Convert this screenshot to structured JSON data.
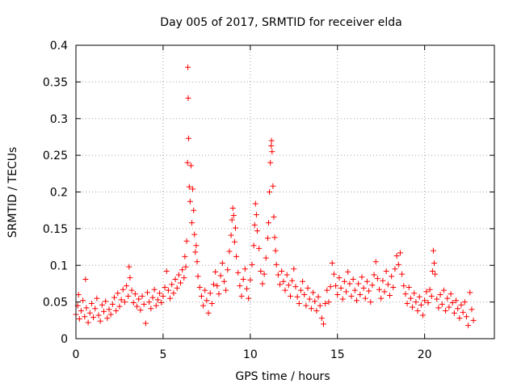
{
  "chart_data": {
    "type": "scatter",
    "title": "Day 005 of 2017, SRMTID for receiver elda",
    "xlabel": "GPS time / hours",
    "ylabel": "SRMTID / TECUs",
    "xlim": [
      0,
      24
    ],
    "ylim": [
      0,
      0.4
    ],
    "xticks": [
      0,
      5,
      10,
      15,
      20
    ],
    "xtick_labels": [
      "0",
      "5",
      "10",
      "15",
      "20"
    ],
    "yticks": [
      0,
      0.05,
      0.1,
      0.15,
      0.2,
      0.25,
      0.3,
      0.35,
      0.4
    ],
    "ytick_labels": [
      "0",
      "0.05",
      "0.1",
      "0.15",
      "0.2",
      "0.25",
      "0.3",
      "0.35",
      "0.4"
    ],
    "grid": true,
    "marker": "+",
    "color": "#ff0000",
    "series": [
      {
        "name": "SRMTID",
        "points": [
          [
            0.0,
            0.033
          ],
          [
            0.1,
            0.045
          ],
          [
            0.15,
            0.06
          ],
          [
            0.2,
            0.027
          ],
          [
            0.3,
            0.038
          ],
          [
            0.4,
            0.052
          ],
          [
            0.5,
            0.03
          ],
          [
            0.55,
            0.081
          ],
          [
            0.6,
            0.042
          ],
          [
            0.7,
            0.022
          ],
          [
            0.8,
            0.035
          ],
          [
            0.9,
            0.048
          ],
          [
            1.0,
            0.029
          ],
          [
            1.1,
            0.041
          ],
          [
            1.2,
            0.055
          ],
          [
            1.3,
            0.032
          ],
          [
            1.4,
            0.024
          ],
          [
            1.5,
            0.046
          ],
          [
            1.6,
            0.037
          ],
          [
            1.7,
            0.051
          ],
          [
            1.8,
            0.028
          ],
          [
            1.9,
            0.04
          ],
          [
            2.0,
            0.033
          ],
          [
            2.1,
            0.047
          ],
          [
            2.2,
            0.056
          ],
          [
            2.3,
            0.038
          ],
          [
            2.4,
            0.062
          ],
          [
            2.5,
            0.044
          ],
          [
            2.6,
            0.053
          ],
          [
            2.7,
            0.067
          ],
          [
            2.8,
            0.05
          ],
          [
            2.9,
            0.072
          ],
          [
            3.0,
            0.058
          ],
          [
            3.05,
            0.098
          ],
          [
            3.1,
            0.083
          ],
          [
            3.2,
            0.066
          ],
          [
            3.3,
            0.049
          ],
          [
            3.4,
            0.061
          ],
          [
            3.5,
            0.044
          ],
          [
            3.6,
            0.054
          ],
          [
            3.7,
            0.039
          ],
          [
            3.8,
            0.058
          ],
          [
            3.9,
            0.047
          ],
          [
            4.0,
            0.021
          ],
          [
            4.1,
            0.063
          ],
          [
            4.2,
            0.05
          ],
          [
            4.3,
            0.041
          ],
          [
            4.4,
            0.056
          ],
          [
            4.5,
            0.067
          ],
          [
            4.6,
            0.045
          ],
          [
            4.7,
            0.053
          ],
          [
            4.8,
            0.062
          ],
          [
            4.9,
            0.049
          ],
          [
            5.0,
            0.058
          ],
          [
            5.1,
            0.07
          ],
          [
            5.2,
            0.092
          ],
          [
            5.3,
            0.066
          ],
          [
            5.4,
            0.055
          ],
          [
            5.5,
            0.074
          ],
          [
            5.6,
            0.062
          ],
          [
            5.7,
            0.081
          ],
          [
            5.8,
            0.069
          ],
          [
            5.9,
            0.087
          ],
          [
            6.0,
            0.076
          ],
          [
            6.1,
            0.094
          ],
          [
            6.2,
            0.083
          ],
          [
            6.25,
            0.112
          ],
          [
            6.3,
            0.098
          ],
          [
            6.35,
            0.133
          ],
          [
            6.4,
            0.24
          ],
          [
            6.42,
            0.37
          ],
          [
            6.44,
            0.328
          ],
          [
            6.46,
            0.273
          ],
          [
            6.5,
            0.207
          ],
          [
            6.55,
            0.187
          ],
          [
            6.6,
            0.236
          ],
          [
            6.65,
            0.158
          ],
          [
            6.7,
            0.204
          ],
          [
            6.75,
            0.175
          ],
          [
            6.8,
            0.142
          ],
          [
            6.85,
            0.118
          ],
          [
            6.9,
            0.127
          ],
          [
            6.95,
            0.105
          ],
          [
            7.0,
            0.085
          ],
          [
            7.1,
            0.07
          ],
          [
            7.2,
            0.058
          ],
          [
            7.3,
            0.045
          ],
          [
            7.4,
            0.066
          ],
          [
            7.5,
            0.052
          ],
          [
            7.6,
            0.035
          ],
          [
            7.7,
            0.062
          ],
          [
            7.8,
            0.048
          ],
          [
            7.9,
            0.074
          ],
          [
            8.0,
            0.091
          ],
          [
            8.1,
            0.072
          ],
          [
            8.2,
            0.061
          ],
          [
            8.3,
            0.086
          ],
          [
            8.4,
            0.103
          ],
          [
            8.5,
            0.078
          ],
          [
            8.6,
            0.066
          ],
          [
            8.7,
            0.094
          ],
          [
            8.8,
            0.119
          ],
          [
            8.9,
            0.141
          ],
          [
            8.95,
            0.162
          ],
          [
            9.0,
            0.178
          ],
          [
            9.05,
            0.168
          ],
          [
            9.1,
            0.132
          ],
          [
            9.15,
            0.151
          ],
          [
            9.2,
            0.112
          ],
          [
            9.3,
            0.09
          ],
          [
            9.4,
            0.072
          ],
          [
            9.5,
            0.058
          ],
          [
            9.6,
            0.081
          ],
          [
            9.7,
            0.095
          ],
          [
            9.8,
            0.068
          ],
          [
            9.9,
            0.055
          ],
          [
            10.0,
            0.08
          ],
          [
            10.1,
            0.101
          ],
          [
            10.2,
            0.127
          ],
          [
            10.25,
            0.155
          ],
          [
            10.3,
            0.184
          ],
          [
            10.35,
            0.169
          ],
          [
            10.4,
            0.147
          ],
          [
            10.5,
            0.123
          ],
          [
            10.6,
            0.092
          ],
          [
            10.7,
            0.075
          ],
          [
            10.8,
            0.088
          ],
          [
            10.9,
            0.11
          ],
          [
            11.0,
            0.137
          ],
          [
            11.05,
            0.158
          ],
          [
            11.1,
            0.2
          ],
          [
            11.15,
            0.24
          ],
          [
            11.2,
            0.263
          ],
          [
            11.22,
            0.27
          ],
          [
            11.25,
            0.255
          ],
          [
            11.3,
            0.208
          ],
          [
            11.35,
            0.166
          ],
          [
            11.4,
            0.138
          ],
          [
            11.45,
            0.12
          ],
          [
            11.5,
            0.101
          ],
          [
            11.6,
            0.087
          ],
          [
            11.7,
            0.074
          ],
          [
            11.8,
            0.092
          ],
          [
            11.9,
            0.078
          ],
          [
            12.0,
            0.066
          ],
          [
            12.1,
            0.087
          ],
          [
            12.2,
            0.073
          ],
          [
            12.3,
            0.058
          ],
          [
            12.4,
            0.079
          ],
          [
            12.5,
            0.095
          ],
          [
            12.6,
            0.071
          ],
          [
            12.7,
            0.057
          ],
          [
            12.8,
            0.048
          ],
          [
            12.9,
            0.066
          ],
          [
            13.0,
            0.078
          ],
          [
            13.1,
            0.06
          ],
          [
            13.2,
            0.045
          ],
          [
            13.3,
            0.069
          ],
          [
            13.4,
            0.054
          ],
          [
            13.5,
            0.041
          ],
          [
            13.6,
            0.063
          ],
          [
            13.7,
            0.051
          ],
          [
            13.8,
            0.038
          ],
          [
            13.9,
            0.057
          ],
          [
            14.0,
            0.045
          ],
          [
            14.1,
            0.028
          ],
          [
            14.2,
            0.02
          ],
          [
            14.3,
            0.048
          ],
          [
            14.4,
            0.066
          ],
          [
            14.5,
            0.05
          ],
          [
            14.6,
            0.071
          ],
          [
            14.7,
            0.103
          ],
          [
            14.8,
            0.088
          ],
          [
            14.9,
            0.072
          ],
          [
            15.0,
            0.06
          ],
          [
            15.1,
            0.083
          ],
          [
            15.2,
            0.069
          ],
          [
            15.3,
            0.054
          ],
          [
            15.4,
            0.078
          ],
          [
            15.5,
            0.064
          ],
          [
            15.6,
            0.091
          ],
          [
            15.7,
            0.075
          ],
          [
            15.8,
            0.058
          ],
          [
            15.9,
            0.081
          ],
          [
            16.0,
            0.066
          ],
          [
            16.1,
            0.052
          ],
          [
            16.2,
            0.075
          ],
          [
            16.3,
            0.06
          ],
          [
            16.4,
            0.084
          ],
          [
            16.5,
            0.069
          ],
          [
            16.6,
            0.055
          ],
          [
            16.7,
            0.078
          ],
          [
            16.8,
            0.065
          ],
          [
            16.9,
            0.05
          ],
          [
            17.0,
            0.073
          ],
          [
            17.1,
            0.087
          ],
          [
            17.2,
            0.105
          ],
          [
            17.3,
            0.082
          ],
          [
            17.4,
            0.067
          ],
          [
            17.5,
            0.055
          ],
          [
            17.6,
            0.079
          ],
          [
            17.7,
            0.064
          ],
          [
            17.8,
            0.092
          ],
          [
            17.9,
            0.074
          ],
          [
            18.0,
            0.059
          ],
          [
            18.1,
            0.085
          ],
          [
            18.2,
            0.07
          ],
          [
            18.3,
            0.095
          ],
          [
            18.4,
            0.113
          ],
          [
            18.5,
            0.101
          ],
          [
            18.6,
            0.117
          ],
          [
            18.7,
            0.088
          ],
          [
            18.8,
            0.072
          ],
          [
            18.9,
            0.061
          ],
          [
            19.0,
            0.048
          ],
          [
            19.1,
            0.07
          ],
          [
            19.2,
            0.055
          ],
          [
            19.3,
            0.043
          ],
          [
            19.4,
            0.062
          ],
          [
            19.5,
            0.05
          ],
          [
            19.6,
            0.038
          ],
          [
            19.7,
            0.057
          ],
          [
            19.8,
            0.046
          ],
          [
            19.9,
            0.032
          ],
          [
            20.0,
            0.052
          ],
          [
            20.1,
            0.064
          ],
          [
            20.2,
            0.049
          ],
          [
            20.3,
            0.067
          ],
          [
            20.4,
            0.058
          ],
          [
            20.45,
            0.092
          ],
          [
            20.5,
            0.12
          ],
          [
            20.55,
            0.103
          ],
          [
            20.6,
            0.088
          ],
          [
            20.7,
            0.054
          ],
          [
            20.8,
            0.042
          ],
          [
            20.9,
            0.06
          ],
          [
            21.0,
            0.047
          ],
          [
            21.1,
            0.066
          ],
          [
            21.2,
            0.038
          ],
          [
            21.3,
            0.055
          ],
          [
            21.4,
            0.043
          ],
          [
            21.5,
            0.061
          ],
          [
            21.6,
            0.049
          ],
          [
            21.7,
            0.035
          ],
          [
            21.8,
            0.052
          ],
          [
            21.9,
            0.041
          ],
          [
            22.0,
            0.028
          ],
          [
            22.1,
            0.046
          ],
          [
            22.2,
            0.036
          ],
          [
            22.3,
            0.05
          ],
          [
            22.4,
            0.03
          ],
          [
            22.5,
            0.018
          ],
          [
            22.6,
            0.063
          ],
          [
            22.7,
            0.04
          ],
          [
            22.8,
            0.025
          ]
        ]
      }
    ]
  }
}
